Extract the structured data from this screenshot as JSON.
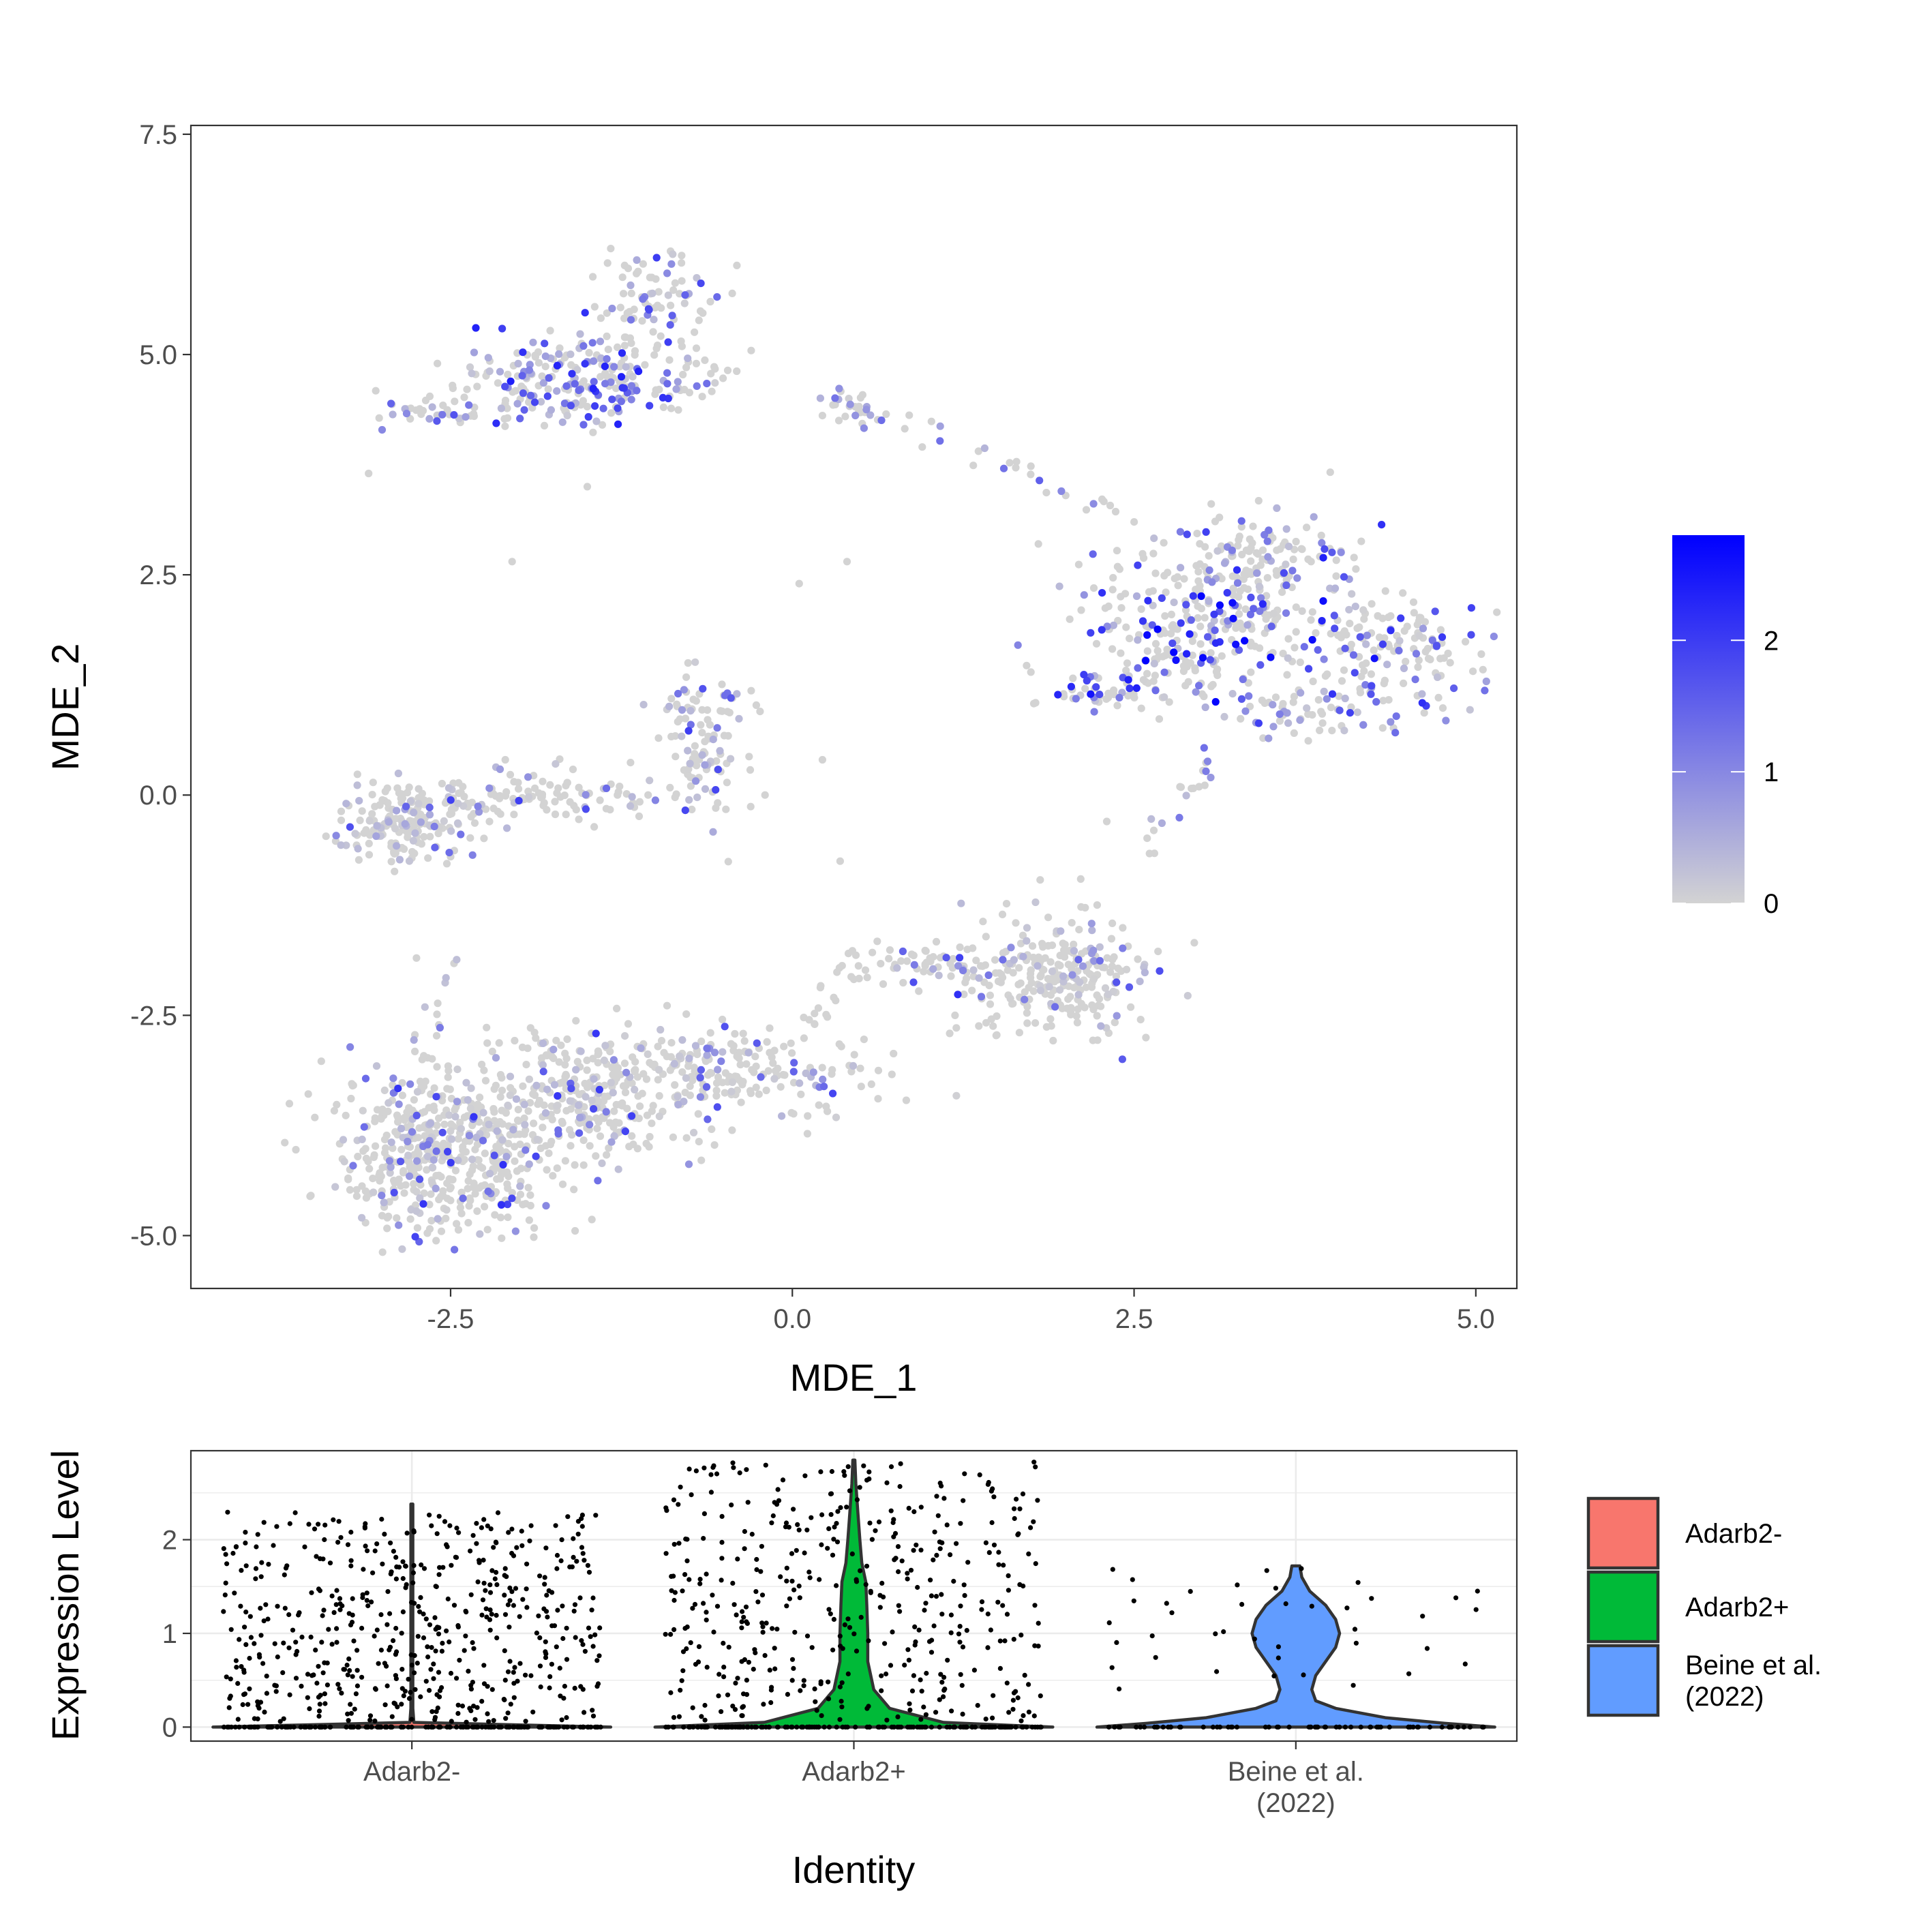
{
  "colors": {
    "low": "#d3d3d3",
    "high": "#0000ff",
    "Adarb2-": "#f8766d",
    "Adarb2+": "#00ba38",
    "Beine et al. (2022)": "#619cff",
    "point": "#000000",
    "outline": "#333333"
  },
  "chart_data": [
    {
      "type": "scatter",
      "title": "",
      "xlabel": "MDE_1",
      "ylabel": "MDE_2",
      "xlim": [
        -4.4,
        5.3
      ],
      "ylim": [
        -5.6,
        7.6
      ],
      "xticks": [
        -2.5,
        0.0,
        2.5,
        5.0
      ],
      "xtick_labels": [
        "-2.5",
        "0.0",
        "2.5",
        "5.0"
      ],
      "yticks": [
        -5.0,
        -2.5,
        0.0,
        2.5,
        5.0,
        7.5
      ],
      "ytick_labels": [
        "-5.0",
        "-2.5",
        "0.0",
        "2.5",
        "5.0",
        "7.5"
      ],
      "grid": false,
      "color_scale": {
        "low": 0,
        "high": 2.8,
        "ticks": [
          0,
          1,
          2
        ],
        "tick_labels": [
          "0",
          "1",
          "2"
        ],
        "low_color": "#d3d3d3",
        "high_color": "#0000ff"
      },
      "clusters": [
        {
          "center": [
            -1.5,
            4.7
          ],
          "spread": [
            0.45,
            0.25
          ],
          "count": 260,
          "max_expr": 2.4,
          "expr_fraction": 0.35
        },
        {
          "center": [
            -1.05,
            5.7
          ],
          "spread": [
            0.22,
            0.25
          ],
          "count": 70,
          "max_expr": 2.2,
          "expr_fraction": 0.25
        },
        {
          "center": [
            -2.6,
            4.35
          ],
          "spread": [
            0.25,
            0.07
          ],
          "count": 40,
          "max_expr": 1.8,
          "expr_fraction": 0.35
        },
        {
          "center": [
            0.45,
            4.4
          ],
          "spread": [
            0.15,
            0.1
          ],
          "count": 30,
          "max_expr": 1.6,
          "expr_fraction": 0.25
        },
        {
          "center": [
            3.0,
            1.9
          ],
          "spread": [
            0.45,
            0.45
          ],
          "count": 280,
          "max_expr": 2.8,
          "expr_fraction": 0.28
        },
        {
          "center": [
            3.5,
            2.7
          ],
          "spread": [
            0.35,
            0.3
          ],
          "count": 120,
          "max_expr": 2.2,
          "expr_fraction": 0.22
        },
        {
          "center": [
            4.4,
            1.65
          ],
          "spread": [
            0.3,
            0.3
          ],
          "count": 120,
          "max_expr": 2.2,
          "expr_fraction": 0.25
        },
        {
          "center": [
            3.9,
            1.0
          ],
          "spread": [
            0.4,
            0.18
          ],
          "count": 80,
          "max_expr": 2.2,
          "expr_fraction": 0.4
        },
        {
          "center": [
            2.35,
            1.2
          ],
          "spread": [
            0.3,
            0.15
          ],
          "count": 60,
          "max_expr": 2.8,
          "expr_fraction": 0.3
        },
        {
          "center": [
            -2.85,
            -0.35
          ],
          "spread": [
            0.22,
            0.22
          ],
          "count": 170,
          "max_expr": 1.8,
          "expr_fraction": 0.1
        },
        {
          "center": [
            -1.9,
            -0.05
          ],
          "spread": [
            0.5,
            0.15
          ],
          "count": 120,
          "max_expr": 2.0,
          "expr_fraction": 0.12
        },
        {
          "center": [
            -0.65,
            0.6
          ],
          "spread": [
            0.15,
            0.45
          ],
          "count": 110,
          "max_expr": 2.0,
          "expr_fraction": 0.15
        },
        {
          "center": [
            -2.55,
            -4.05
          ],
          "spread": [
            0.4,
            0.45
          ],
          "count": 520,
          "max_expr": 2.2,
          "expr_fraction": 0.08
        },
        {
          "center": [
            -1.5,
            -3.4
          ],
          "spread": [
            0.5,
            0.35
          ],
          "count": 320,
          "max_expr": 2.2,
          "expr_fraction": 0.08
        },
        {
          "center": [
            -0.3,
            -3.15
          ],
          "spread": [
            0.45,
            0.25
          ],
          "count": 170,
          "max_expr": 2.0,
          "expr_fraction": 0.1
        },
        {
          "center": [
            1.95,
            -2.05
          ],
          "spread": [
            0.35,
            0.35
          ],
          "count": 260,
          "max_expr": 2.2,
          "expr_fraction": 0.1
        },
        {
          "center": [
            1.0,
            -1.95
          ],
          "spread": [
            0.35,
            0.12
          ],
          "count": 60,
          "max_expr": 2.0,
          "expr_fraction": 0.2
        }
      ],
      "trails": [
        {
          "from": [
            -2.75,
            -3.5
          ],
          "to": [
            -2.5,
            -1.8
          ],
          "count": 18,
          "max_expr": 1.5,
          "expr_fraction": 0.1
        },
        {
          "from": [
            0.1,
            -2.7
          ],
          "to": [
            0.55,
            -1.6
          ],
          "count": 22,
          "max_expr": 1.5,
          "expr_fraction": 0.15
        },
        {
          "from": [
            0.7,
            4.3
          ],
          "to": [
            2.5,
            3.2
          ],
          "count": 22,
          "max_expr": 1.6,
          "expr_fraction": 0.3
        },
        {
          "from": [
            3.1,
            0.55
          ],
          "to": [
            2.6,
            -0.7
          ],
          "count": 20,
          "max_expr": 1.6,
          "expr_fraction": 0.4
        },
        {
          "from": [
            -0.8,
            5.6
          ],
          "to": [
            -0.6,
            4.7
          ],
          "count": 6,
          "max_expr": 1.0,
          "expr_fraction": 0.1
        }
      ],
      "outliers": [
        [
          -3.1,
          3.65
        ],
        [
          -2.05,
          2.65
        ],
        [
          -1.5,
          3.5
        ],
        [
          -0.6,
          5.6
        ],
        [
          0.05,
          2.4
        ],
        [
          0.4,
          2.65
        ],
        [
          0.22,
          0.4
        ],
        [
          0.35,
          -0.75
        ],
        [
          -2.1,
          0.4
        ],
        [
          -2.5,
          -0.7
        ],
        [
          0.95,
          3.95
        ],
        [
          1.8,
          2.85
        ],
        [
          2.5,
          3.1
        ],
        [
          2.0,
          3.4
        ],
        [
          -2.75,
          -1.85
        ],
        [
          -0.2,
          0.0
        ],
        [
          2.3,
          -0.3
        ]
      ],
      "point_count_note": "",
      "seed": 20220101
    },
    {
      "type": "violin",
      "title": "",
      "xlabel": "Identity",
      "ylabel": "Expression Level",
      "categories": [
        "Adarb2-",
        "Adarb2+",
        "Beine et al.\n(2022)"
      ],
      "xtick_labels": [
        [
          "Adarb2-"
        ],
        [
          "Adarb2+"
        ],
        [
          "Beine et al.",
          "(2022)"
        ]
      ],
      "ylim": [
        -0.15,
        2.95
      ],
      "yticks": [
        0,
        1,
        2
      ],
      "ytick_labels": [
        "0",
        "1",
        "2"
      ],
      "grid": true,
      "legend_position": "right",
      "legend": [
        {
          "label": "Adarb2-",
          "color": "#f8766d"
        },
        {
          "label": "Adarb2+",
          "color": "#00ba38"
        },
        {
          "label": "Beine et al.\n(2022)",
          "color": "#619cff"
        }
      ],
      "legend_label_lines": [
        [
          "Adarb2-"
        ],
        [
          "Adarb2+"
        ],
        [
          "Beine et al.",
          "(2022)"
        ]
      ],
      "series": [
        {
          "category": "Adarb2-",
          "color": "#f8766d",
          "max": 2.38,
          "density_profile": [
            [
              0.0,
              1.0
            ],
            [
              0.02,
              0.6
            ],
            [
              0.05,
              0.01
            ],
            [
              0.2,
              0.005
            ],
            [
              2.38,
              0.005
            ]
          ],
          "jitter_points_nonzero": 520,
          "jitter_points_zero": 160,
          "nonzero_range": [
            0.05,
            2.3
          ]
        },
        {
          "category": "Adarb2+",
          "color": "#00ba38",
          "max": 2.85,
          "density_profile": [
            [
              0.0,
              1.0
            ],
            [
              0.05,
              0.45
            ],
            [
              0.2,
              0.18
            ],
            [
              0.4,
              0.1
            ],
            [
              0.7,
              0.07
            ],
            [
              1.0,
              0.07
            ],
            [
              1.3,
              0.065
            ],
            [
              1.55,
              0.06
            ],
            [
              1.75,
              0.04
            ],
            [
              2.0,
              0.03
            ],
            [
              2.3,
              0.02
            ],
            [
              2.6,
              0.01
            ],
            [
              2.85,
              0.005
            ]
          ],
          "jitter_points_nonzero": 420,
          "jitter_points_zero": 150,
          "nonzero_range": [
            0.05,
            2.85
          ]
        },
        {
          "category": "Beine et al.\n(2022)",
          "color": "#619cff",
          "max": 1.72,
          "density_profile": [
            [
              0.0,
              1.0
            ],
            [
              0.04,
              0.75
            ],
            [
              0.1,
              0.45
            ],
            [
              0.2,
              0.2
            ],
            [
              0.28,
              0.1
            ],
            [
              0.4,
              0.08
            ],
            [
              0.55,
              0.1
            ],
            [
              0.7,
              0.15
            ],
            [
              0.85,
              0.2
            ],
            [
              1.0,
              0.22
            ],
            [
              1.15,
              0.2
            ],
            [
              1.3,
              0.15
            ],
            [
              1.45,
              0.07
            ],
            [
              1.6,
              0.03
            ],
            [
              1.72,
              0.02
            ]
          ],
          "jitter_points_nonzero": 40,
          "jitter_points_zero": 65,
          "nonzero_range": [
            0.4,
            1.75
          ]
        }
      ],
      "seed": 777
    }
  ]
}
